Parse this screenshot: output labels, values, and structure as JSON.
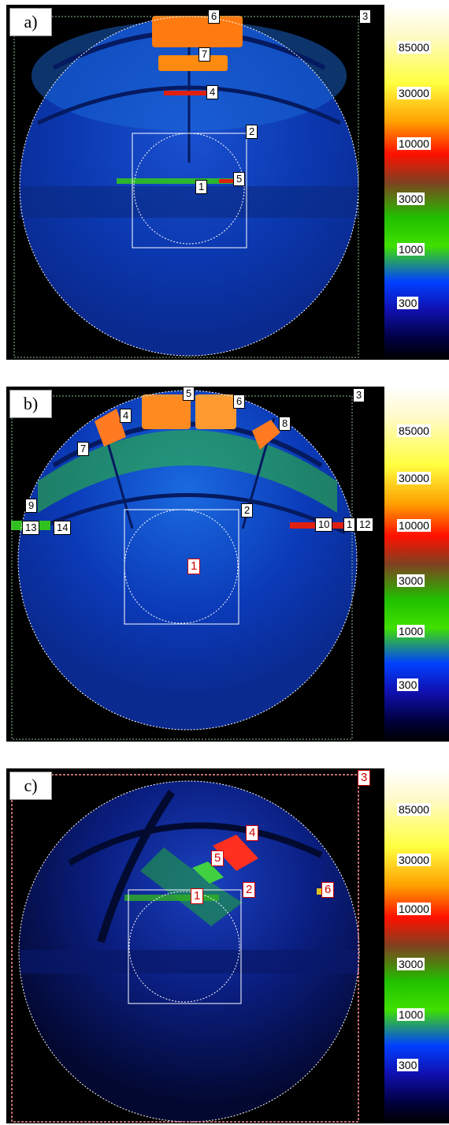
{
  "panels": [
    {
      "tag": "a)",
      "labels": [
        "1",
        "2",
        "3",
        "4",
        "5",
        "6",
        "7"
      ],
      "scale": [
        "85000",
        "30000",
        "10000",
        "3000",
        "1000",
        "300"
      ]
    },
    {
      "tag": "b)",
      "labels": [
        "1",
        "2",
        "3",
        "4",
        "5",
        "6",
        "7",
        "8",
        "9",
        "10",
        "1",
        "12",
        "13",
        "14"
      ],
      "scale": [
        "85000",
        "30000",
        "10000",
        "3000",
        "1000",
        "300"
      ]
    },
    {
      "tag": "c)",
      "labels": [
        "1",
        "2",
        "3",
        "4",
        "5",
        "6"
      ],
      "scale": [
        "85000",
        "30000",
        "10000",
        "3000",
        "1000",
        "300"
      ]
    }
  ]
}
